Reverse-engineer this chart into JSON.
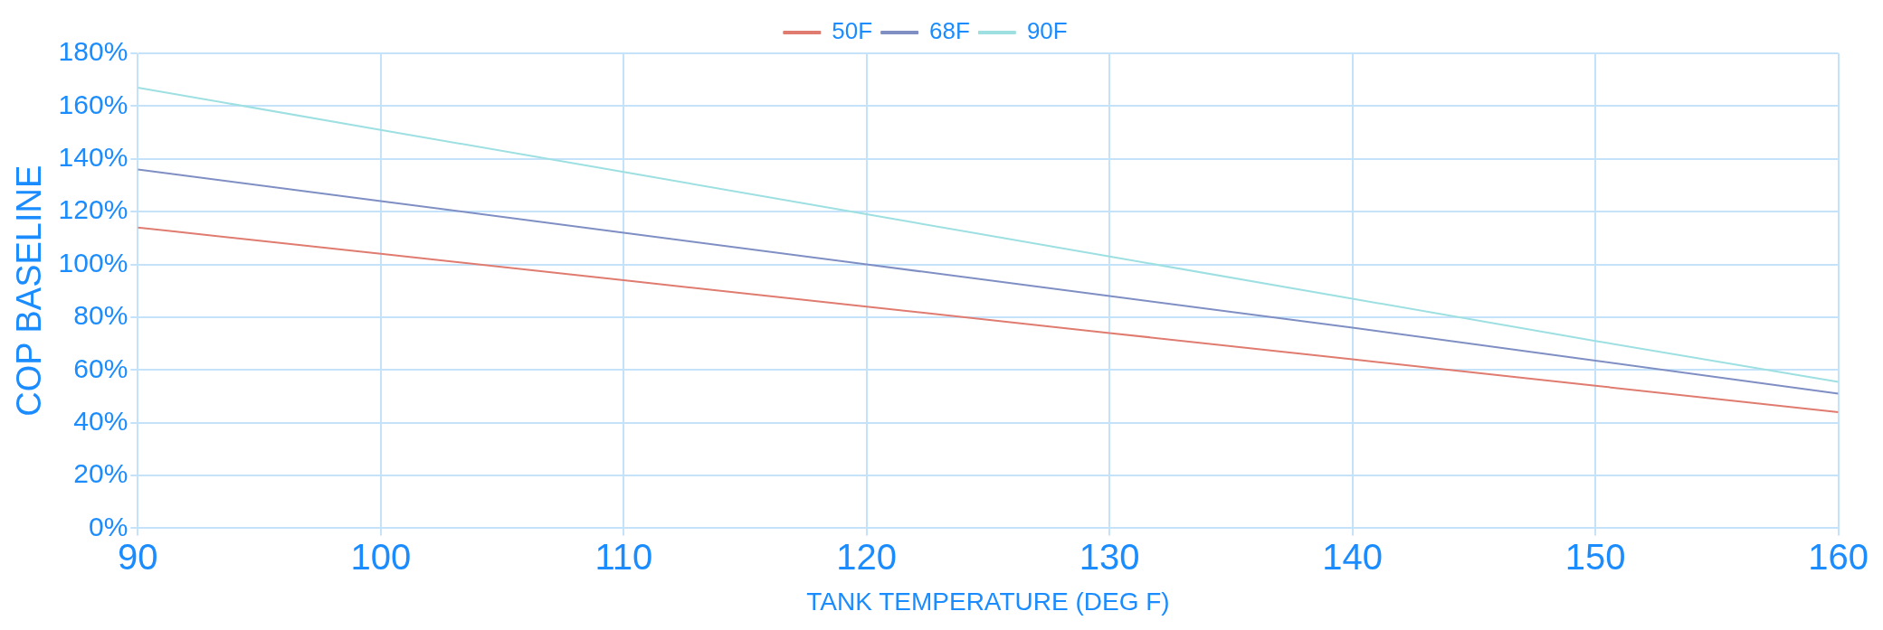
{
  "chart_data": {
    "type": "line",
    "xlabel": "TANK TEMPERATURE (DEG F)",
    "ylabel": "COP BASELINE",
    "x": [
      90,
      100,
      110,
      120,
      130,
      140,
      150,
      160
    ],
    "series": [
      {
        "name": "50F",
        "color": "#e07b70",
        "values": [
          114,
          104,
          94,
          84,
          74,
          64,
          54,
          44
        ]
      },
      {
        "name": "68F",
        "color": "#7f8fc4",
        "values": [
          136,
          124,
          112,
          100,
          88,
          76,
          63.5,
          51
        ]
      },
      {
        "name": "90F",
        "color": "#9ee0e2",
        "values": [
          167,
          151,
          135,
          119,
          103,
          87,
          71,
          55.5
        ]
      }
    ],
    "xlim": [
      90,
      160
    ],
    "xticks": [
      90,
      100,
      110,
      120,
      130,
      140,
      150,
      160
    ],
    "ylim": [
      0,
      180
    ],
    "yticks": [
      {
        "value": 0,
        "label": "0%"
      },
      {
        "value": 20,
        "label": "20%"
      },
      {
        "value": 40,
        "label": "40%"
      },
      {
        "value": 60,
        "label": "60%"
      },
      {
        "value": 80,
        "label": "80%"
      },
      {
        "value": 100,
        "label": "100%"
      },
      {
        "value": 120,
        "label": "120%"
      },
      {
        "value": 140,
        "label": "140%"
      },
      {
        "value": 160,
        "label": "160%"
      },
      {
        "value": 180,
        "label": "180%"
      }
    ],
    "grid": true,
    "legend": "top",
    "marker": "none",
    "line_style": "solid"
  }
}
